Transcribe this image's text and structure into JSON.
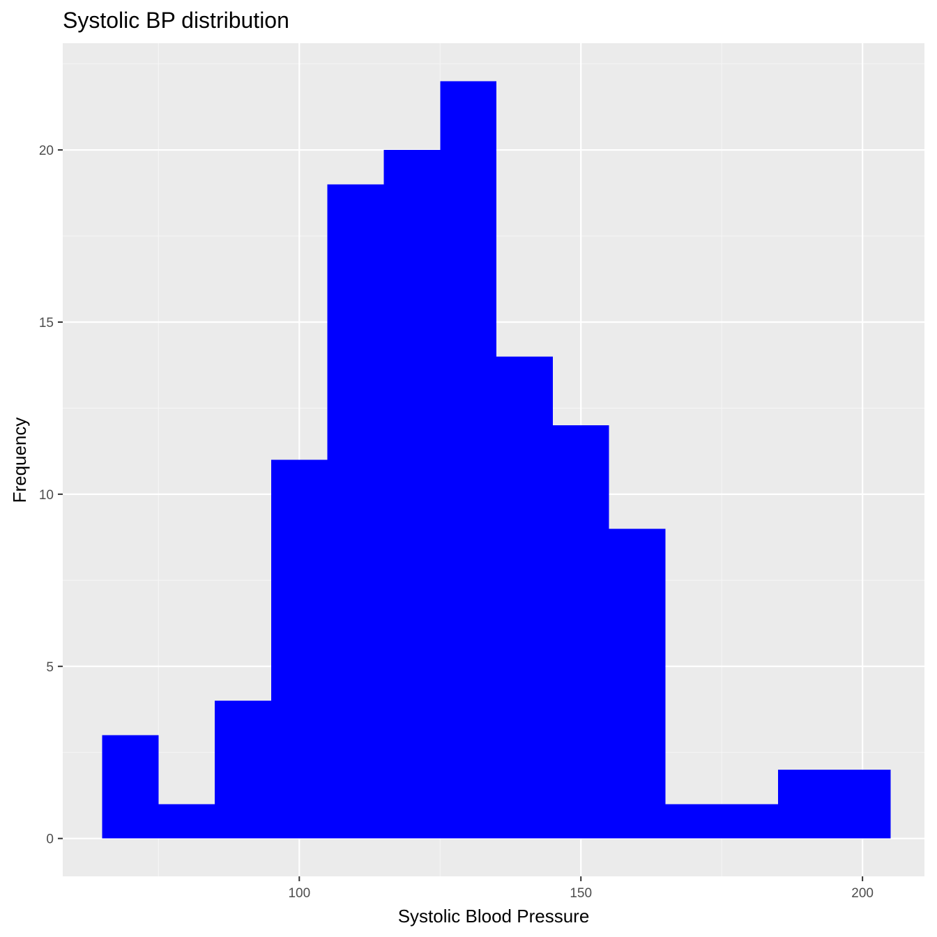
{
  "chart_data": {
    "type": "bar",
    "title": "Systolic BP distribution",
    "xlabel": "Systolic Blood Pressure",
    "ylabel": "Frequency",
    "bin_width": 10,
    "bins": [
      {
        "start": 65,
        "end": 75,
        "count": 3
      },
      {
        "start": 75,
        "end": 85,
        "count": 1
      },
      {
        "start": 85,
        "end": 95,
        "count": 4
      },
      {
        "start": 95,
        "end": 105,
        "count": 11
      },
      {
        "start": 105,
        "end": 115,
        "count": 19
      },
      {
        "start": 115,
        "end": 125,
        "count": 20
      },
      {
        "start": 125,
        "end": 135,
        "count": 22
      },
      {
        "start": 135,
        "end": 145,
        "count": 14
      },
      {
        "start": 145,
        "end": 155,
        "count": 12
      },
      {
        "start": 155,
        "end": 165,
        "count": 9
      },
      {
        "start": 165,
        "end": 175,
        "count": 1
      },
      {
        "start": 175,
        "end": 185,
        "count": 1
      },
      {
        "start": 185,
        "end": 195,
        "count": 2
      },
      {
        "start": 195,
        "end": 205,
        "count": 2
      }
    ],
    "xlim": [
      58,
      211
    ],
    "ylim": [
      -1.1,
      23.1
    ],
    "x_ticks": [
      100,
      150,
      200
    ],
    "x_ticks_minor": [
      75,
      125,
      175
    ],
    "y_ticks": [
      0,
      5,
      10,
      15,
      20
    ],
    "y_ticks_minor": [
      2.5,
      7.5,
      12.5,
      17.5,
      22.5
    ],
    "grid": true,
    "legend": "none",
    "colors": {
      "bar_fill": "#0000ff",
      "panel_background": "#ebebeb",
      "grid_major": "#ffffff",
      "grid_minor": "#f5f5f5",
      "tick_label": "#4d4d4d"
    }
  }
}
